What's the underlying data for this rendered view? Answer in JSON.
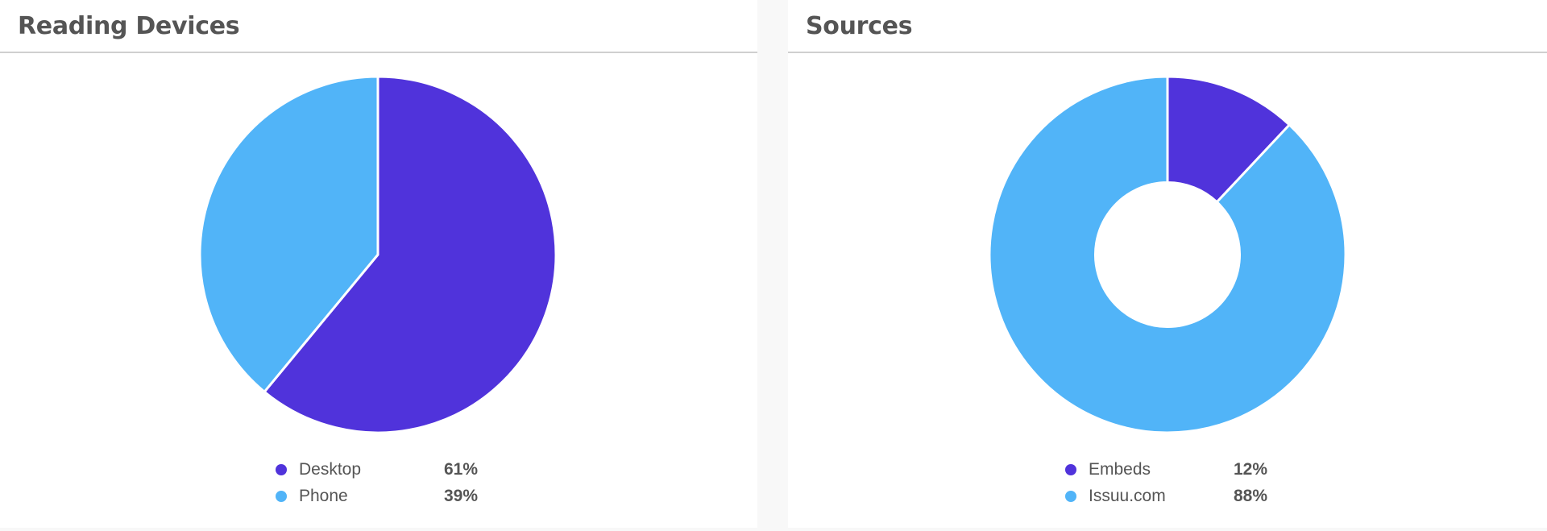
{
  "panels": [
    {
      "title": "Reading Devices",
      "chart_data": {
        "type": "pie",
        "title": "Reading Devices",
        "donut": false,
        "categories": [
          "Desktop",
          "Phone"
        ],
        "values": [
          61,
          39
        ],
        "value_labels": [
          "61%",
          "39%"
        ],
        "colors": [
          "#5033db",
          "#51b4f8"
        ],
        "legend": "bottom"
      }
    },
    {
      "title": "Sources",
      "chart_data": {
        "type": "pie",
        "title": "Sources",
        "donut": true,
        "categories": [
          "Embeds",
          "Issuu.com"
        ],
        "values": [
          12,
          88
        ],
        "value_labels": [
          "12%",
          "88%"
        ],
        "colors": [
          "#5033db",
          "#51b4f8"
        ],
        "legend": "bottom"
      }
    }
  ]
}
